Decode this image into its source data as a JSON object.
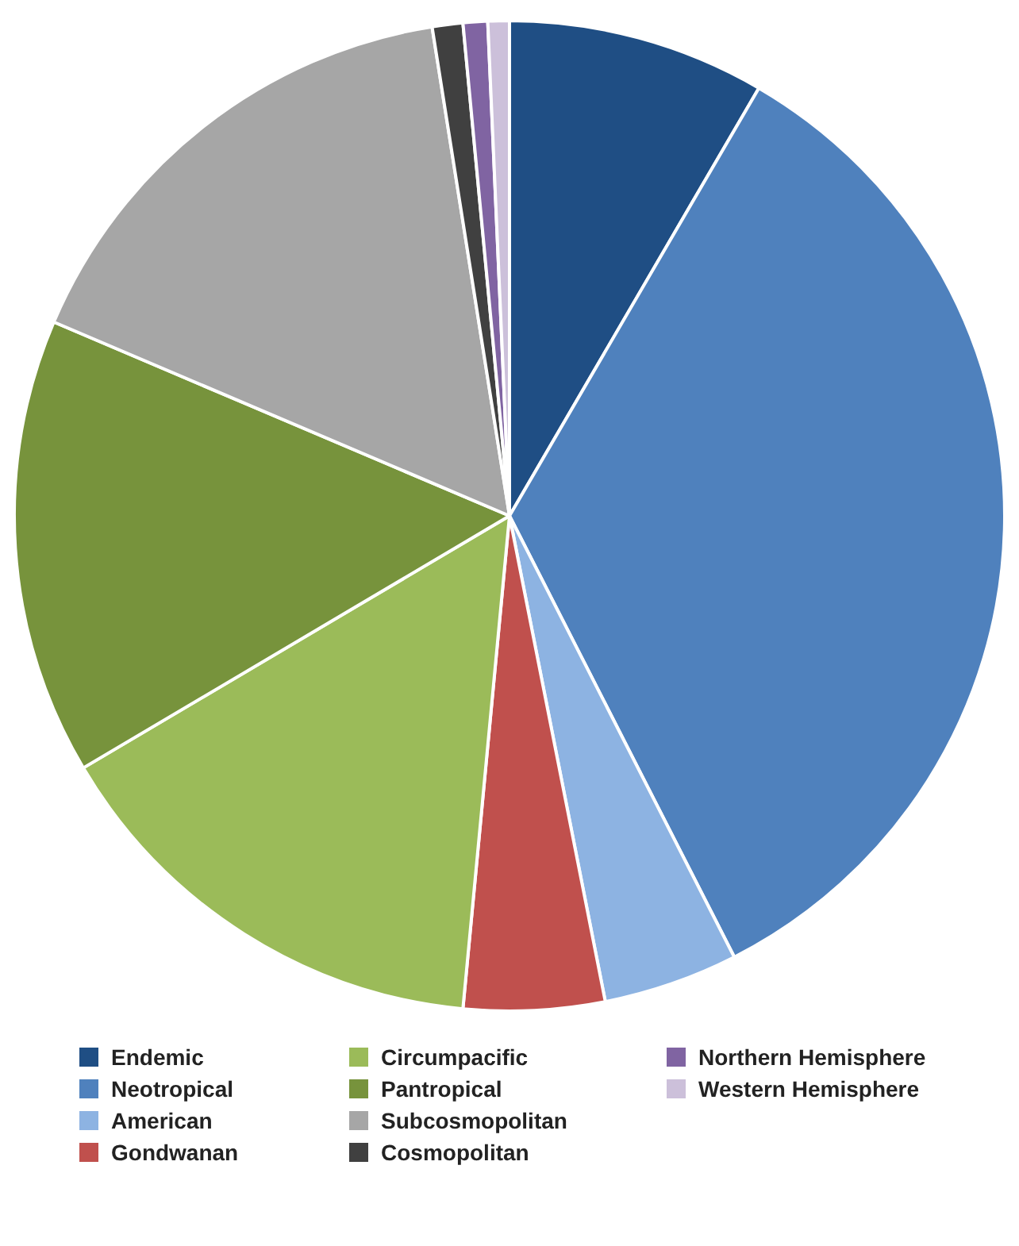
{
  "chart_data": {
    "type": "pie",
    "categories": [
      "Endemic",
      "Neotropical",
      "American",
      "Gondwanan",
      "Circumpacific",
      "Pantropical",
      "Subcosmopolitan",
      "Cosmopolitan",
      "Northern Hemisphere",
      "Western Hemisphere"
    ],
    "values": [
      8.4,
      34.1,
      4.4,
      4.6,
      15.0,
      14.9,
      16.1,
      1.0,
      0.8,
      0.7
    ],
    "colors": [
      "#1f4e84",
      "#4f81bd",
      "#8db3e2",
      "#c0504d",
      "#9bbb59",
      "#77933c",
      "#a6a6a6",
      "#404040",
      "#8064a2",
      "#ccc0da"
    ],
    "legend": "bottom"
  }
}
